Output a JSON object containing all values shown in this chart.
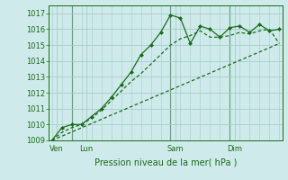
{
  "background_color": "#ceeaea",
  "grid_color": "#a8cccc",
  "line_color": "#1a6b1a",
  "marker_color": "#1a6b1a",
  "title": "Pression niveau de la mer( hPa )",
  "ylim": [
    1009.0,
    1017.5
  ],
  "yticks": [
    1009,
    1010,
    1011,
    1012,
    1013,
    1014,
    1015,
    1016,
    1017
  ],
  "xlim": [
    -0.3,
    23.3
  ],
  "day_labels": [
    "Ven",
    "Lun",
    "Sam",
    "Dim"
  ],
  "day_positions": [
    0.5,
    3.5,
    12.5,
    18.5
  ],
  "vline_positions": [
    2.0,
    12.0,
    18.0
  ],
  "series1_x": [
    0,
    1,
    2,
    3,
    4,
    5,
    6,
    7,
    8,
    9,
    10,
    11,
    12,
    13,
    14,
    15,
    16,
    17,
    18,
    19,
    20,
    21,
    22,
    23
  ],
  "series1_y": [
    1009.0,
    1009.8,
    1010.0,
    1010.0,
    1010.5,
    1011.0,
    1011.7,
    1012.5,
    1013.3,
    1014.4,
    1015.0,
    1015.8,
    1016.9,
    1016.7,
    1015.1,
    1016.2,
    1016.0,
    1015.5,
    1016.1,
    1016.2,
    1015.8,
    1016.3,
    1015.9,
    1016.0
  ],
  "series2_x": [
    0,
    1,
    2,
    3,
    4,
    5,
    6,
    7,
    8,
    9,
    10,
    11,
    12,
    13,
    14,
    15,
    16,
    17,
    18,
    19,
    20,
    21,
    22,
    23
  ],
  "series2_y": [
    1009.0,
    1009.5,
    1009.8,
    1010.0,
    1010.4,
    1010.9,
    1011.5,
    1012.1,
    1012.7,
    1013.2,
    1013.8,
    1014.4,
    1015.0,
    1015.4,
    1015.6,
    1015.9,
    1015.5,
    1015.5,
    1015.6,
    1015.8,
    1015.7,
    1015.9,
    1016.0,
    1015.1
  ],
  "series3_x": [
    0,
    23
  ],
  "series3_y": [
    1009.0,
    1015.1
  ]
}
